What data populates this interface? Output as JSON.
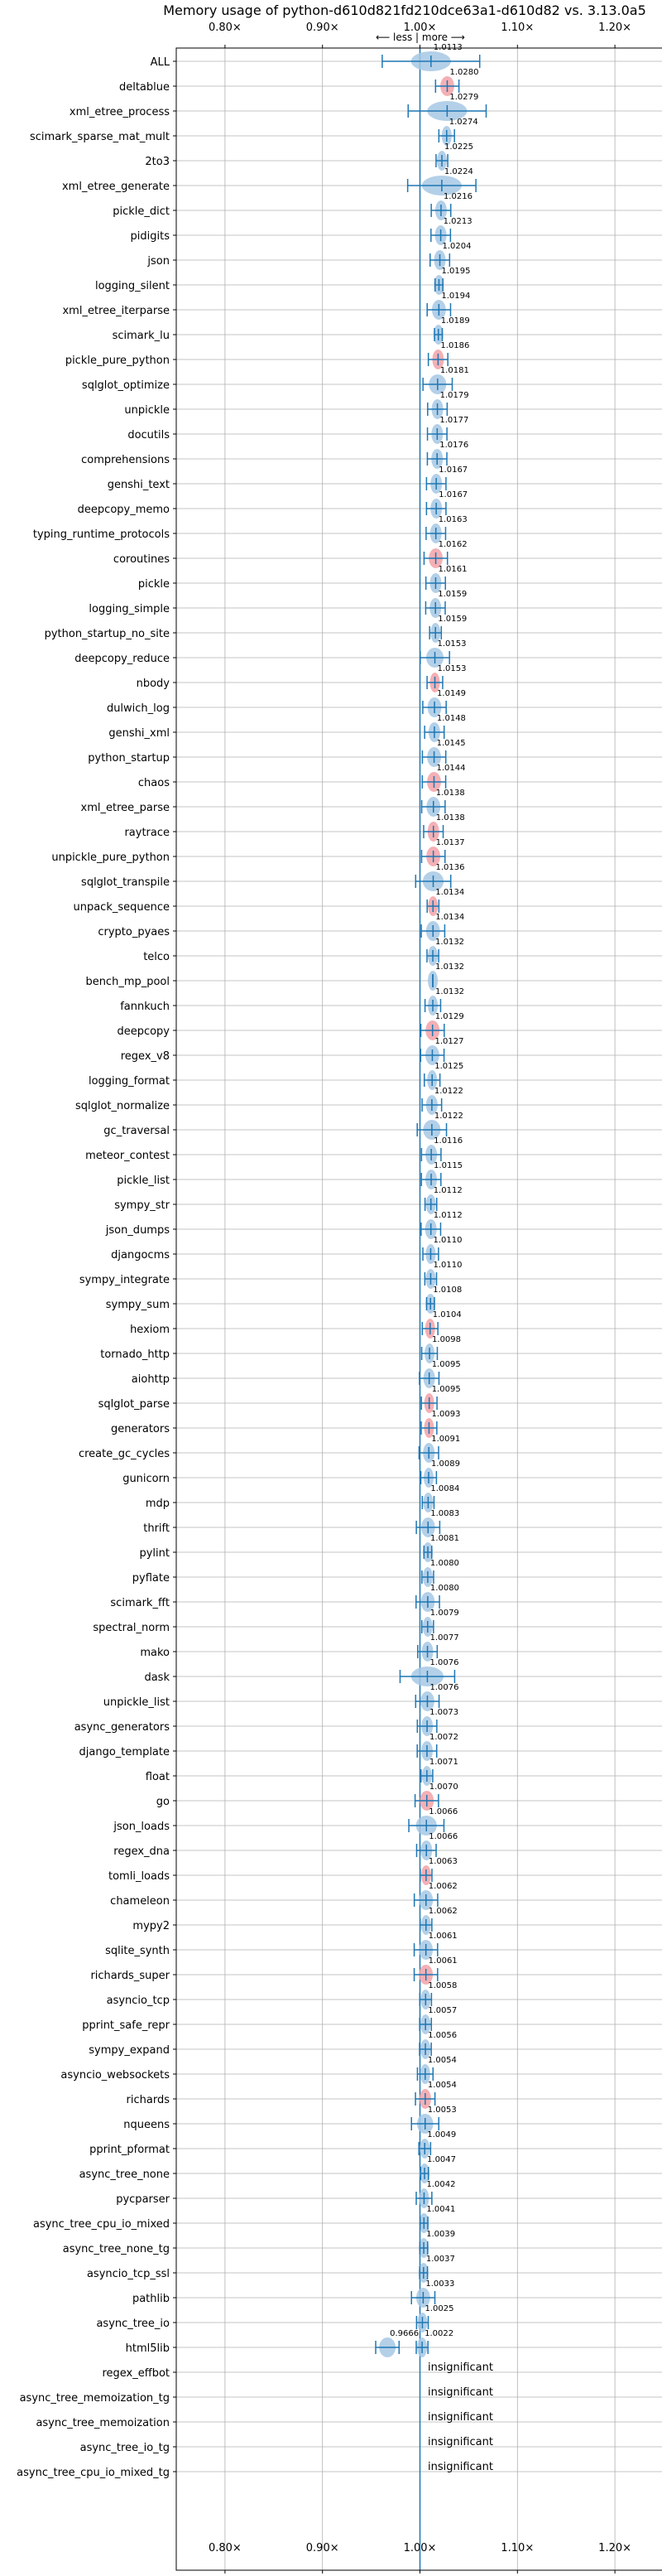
{
  "chart_data": {
    "type": "scatter",
    "title": "Memory usage of python-d610d821fd210dce63a1-d610d82 vs. 3.13.0a5",
    "direction_label": "⟵ less | more ⟶",
    "xlim": [
      0.75,
      1.25
    ],
    "xticks": [
      0.8,
      0.9,
      1.0,
      1.1,
      1.2
    ],
    "xtick_labels": [
      "0.80×",
      "0.90×",
      "1.00×",
      "1.10×",
      "1.20×"
    ],
    "insignificant_label": "insignificant",
    "colors": {
      "line": "#1f77b4",
      "violin_blue": "#a6c8e4",
      "violin_red": "#f2a2a8",
      "grid": "#b0b0b0"
    },
    "benchmarks": [
      {
        "name": "ALL",
        "value": 1.0113,
        "err": 0.05,
        "color": "blue"
      },
      {
        "name": "deltablue",
        "value": 1.028,
        "err": 0.012,
        "color": "red"
      },
      {
        "name": "xml_etree_process",
        "value": 1.0279,
        "err": 0.04,
        "color": "blue"
      },
      {
        "name": "scimark_sparse_mat_mult",
        "value": 1.0274,
        "err": 0.008,
        "color": "blue"
      },
      {
        "name": "2to3",
        "value": 1.0225,
        "err": 0.006,
        "color": "blue"
      },
      {
        "name": "xml_etree_generate",
        "value": 1.0224,
        "err": 0.035,
        "color": "blue"
      },
      {
        "name": "pickle_dict",
        "value": 1.0216,
        "err": 0.01,
        "color": "blue"
      },
      {
        "name": "pidigits",
        "value": 1.0213,
        "err": 0.01,
        "color": "blue"
      },
      {
        "name": "json",
        "value": 1.0204,
        "err": 0.01,
        "color": "blue"
      },
      {
        "name": "logging_silent",
        "value": 1.0195,
        "err": 0.004,
        "color": "blue"
      },
      {
        "name": "xml_etree_iterparse",
        "value": 1.0194,
        "err": 0.012,
        "color": "blue"
      },
      {
        "name": "scimark_lu",
        "value": 1.0189,
        "err": 0.004,
        "color": "blue"
      },
      {
        "name": "pickle_pure_python",
        "value": 1.0186,
        "err": 0.01,
        "color": "red"
      },
      {
        "name": "sqlglot_optimize",
        "value": 1.0181,
        "err": 0.015,
        "color": "blue"
      },
      {
        "name": "unpickle",
        "value": 1.0179,
        "err": 0.01,
        "color": "blue"
      },
      {
        "name": "docutils",
        "value": 1.0177,
        "err": 0.01,
        "color": "blue"
      },
      {
        "name": "comprehensions",
        "value": 1.0176,
        "err": 0.01,
        "color": "blue"
      },
      {
        "name": "genshi_text",
        "value": 1.0167,
        "err": 0.01,
        "color": "blue"
      },
      {
        "name": "deepcopy_memo",
        "value": 1.0167,
        "err": 0.01,
        "color": "blue"
      },
      {
        "name": "typing_runtime_protocols",
        "value": 1.0163,
        "err": 0.01,
        "color": "blue"
      },
      {
        "name": "coroutines",
        "value": 1.0162,
        "err": 0.012,
        "color": "red"
      },
      {
        "name": "pickle",
        "value": 1.0161,
        "err": 0.01,
        "color": "blue"
      },
      {
        "name": "logging_simple",
        "value": 1.0159,
        "err": 0.01,
        "color": "blue"
      },
      {
        "name": "python_startup_no_site",
        "value": 1.0159,
        "err": 0.006,
        "color": "blue"
      },
      {
        "name": "deepcopy_reduce",
        "value": 1.0153,
        "err": 0.015,
        "color": "blue"
      },
      {
        "name": "nbody",
        "value": 1.0153,
        "err": 0.008,
        "color": "red"
      },
      {
        "name": "dulwich_log",
        "value": 1.0149,
        "err": 0.012,
        "color": "blue"
      },
      {
        "name": "genshi_xml",
        "value": 1.0148,
        "err": 0.01,
        "color": "blue"
      },
      {
        "name": "python_startup",
        "value": 1.0145,
        "err": 0.012,
        "color": "blue"
      },
      {
        "name": "chaos",
        "value": 1.0144,
        "err": 0.012,
        "color": "red"
      },
      {
        "name": "xml_etree_parse",
        "value": 1.0138,
        "err": 0.012,
        "color": "blue"
      },
      {
        "name": "raytrace",
        "value": 1.0138,
        "err": 0.01,
        "color": "red"
      },
      {
        "name": "unpickle_pure_python",
        "value": 1.0137,
        "err": 0.012,
        "color": "red"
      },
      {
        "name": "sqlglot_transpile",
        "value": 1.0136,
        "err": 0.018,
        "color": "blue"
      },
      {
        "name": "unpack_sequence",
        "value": 1.0134,
        "err": 0.006,
        "color": "red"
      },
      {
        "name": "crypto_pyaes",
        "value": 1.0134,
        "err": 0.012,
        "color": "blue"
      },
      {
        "name": "telco",
        "value": 1.0132,
        "err": 0.006,
        "color": "blue"
      },
      {
        "name": "bench_mp_pool",
        "value": 1.0132,
        "err": 0.0,
        "color": "blue"
      },
      {
        "name": "fannkuch",
        "value": 1.0132,
        "err": 0.008,
        "color": "blue"
      },
      {
        "name": "deepcopy",
        "value": 1.0129,
        "err": 0.012,
        "color": "red"
      },
      {
        "name": "regex_v8",
        "value": 1.0127,
        "err": 0.012,
        "color": "blue"
      },
      {
        "name": "logging_format",
        "value": 1.0125,
        "err": 0.008,
        "color": "blue"
      },
      {
        "name": "sqlglot_normalize",
        "value": 1.0122,
        "err": 0.01,
        "color": "blue"
      },
      {
        "name": "gc_traversal",
        "value": 1.0122,
        "err": 0.015,
        "color": "blue"
      },
      {
        "name": "meteor_contest",
        "value": 1.0116,
        "err": 0.01,
        "color": "blue"
      },
      {
        "name": "pickle_list",
        "value": 1.0115,
        "err": 0.01,
        "color": "blue"
      },
      {
        "name": "sympy_str",
        "value": 1.0112,
        "err": 0.006,
        "color": "blue"
      },
      {
        "name": "json_dumps",
        "value": 1.0112,
        "err": 0.01,
        "color": "blue"
      },
      {
        "name": "djangocms",
        "value": 1.011,
        "err": 0.008,
        "color": "blue"
      },
      {
        "name": "sympy_integrate",
        "value": 1.011,
        "err": 0.006,
        "color": "blue"
      },
      {
        "name": "sympy_sum",
        "value": 1.0108,
        "err": 0.004,
        "color": "blue"
      },
      {
        "name": "hexiom",
        "value": 1.0104,
        "err": 0.008,
        "color": "red"
      },
      {
        "name": "tornado_http",
        "value": 1.0098,
        "err": 0.008,
        "color": "blue"
      },
      {
        "name": "aiohttp",
        "value": 1.0095,
        "err": 0.01,
        "color": "blue"
      },
      {
        "name": "sqlglot_parse",
        "value": 1.0095,
        "err": 0.008,
        "color": "red"
      },
      {
        "name": "generators",
        "value": 1.0093,
        "err": 0.008,
        "color": "red"
      },
      {
        "name": "create_gc_cycles",
        "value": 1.0091,
        "err": 0.01,
        "color": "blue"
      },
      {
        "name": "gunicorn",
        "value": 1.0089,
        "err": 0.008,
        "color": "blue"
      },
      {
        "name": "mdp",
        "value": 1.0084,
        "err": 0.006,
        "color": "blue"
      },
      {
        "name": "thrift",
        "value": 1.0083,
        "err": 0.012,
        "color": "blue"
      },
      {
        "name": "pylint",
        "value": 1.0081,
        "err": 0.004,
        "color": "blue"
      },
      {
        "name": "pyflate",
        "value": 1.008,
        "err": 0.006,
        "color": "blue"
      },
      {
        "name": "scimark_fft",
        "value": 1.008,
        "err": 0.012,
        "color": "blue"
      },
      {
        "name": "spectral_norm",
        "value": 1.0079,
        "err": 0.006,
        "color": "blue"
      },
      {
        "name": "mako",
        "value": 1.0077,
        "err": 0.01,
        "color": "blue"
      },
      {
        "name": "dask",
        "value": 1.0076,
        "err": 0.028,
        "color": "blue"
      },
      {
        "name": "unpickle_list",
        "value": 1.0076,
        "err": 0.012,
        "color": "blue"
      },
      {
        "name": "async_generators",
        "value": 1.0073,
        "err": 0.01,
        "color": "blue"
      },
      {
        "name": "django_template",
        "value": 1.0072,
        "err": 0.01,
        "color": "blue"
      },
      {
        "name": "float",
        "value": 1.0071,
        "err": 0.006,
        "color": "blue"
      },
      {
        "name": "go",
        "value": 1.007,
        "err": 0.012,
        "color": "red"
      },
      {
        "name": "json_loads",
        "value": 1.0066,
        "err": 0.018,
        "color": "blue"
      },
      {
        "name": "regex_dna",
        "value": 1.0066,
        "err": 0.01,
        "color": "blue"
      },
      {
        "name": "tomli_loads",
        "value": 1.0063,
        "err": 0.006,
        "color": "red"
      },
      {
        "name": "chameleon",
        "value": 1.0062,
        "err": 0.012,
        "color": "blue"
      },
      {
        "name": "mypy2",
        "value": 1.0062,
        "err": 0.006,
        "color": "blue"
      },
      {
        "name": "sqlite_synth",
        "value": 1.0061,
        "err": 0.012,
        "color": "blue"
      },
      {
        "name": "richards_super",
        "value": 1.0061,
        "err": 0.012,
        "color": "red"
      },
      {
        "name": "asyncio_tcp",
        "value": 1.0058,
        "err": 0.006,
        "color": "blue"
      },
      {
        "name": "pprint_safe_repr",
        "value": 1.0057,
        "err": 0.006,
        "color": "blue"
      },
      {
        "name": "sympy_expand",
        "value": 1.0056,
        "err": 0.006,
        "color": "blue"
      },
      {
        "name": "asyncio_websockets",
        "value": 1.0054,
        "err": 0.008,
        "color": "blue"
      },
      {
        "name": "richards",
        "value": 1.0054,
        "err": 0.01,
        "color": "red"
      },
      {
        "name": "nqueens",
        "value": 1.0053,
        "err": 0.014,
        "color": "blue"
      },
      {
        "name": "pprint_pformat",
        "value": 1.0049,
        "err": 0.006,
        "color": "blue"
      },
      {
        "name": "async_tree_none",
        "value": 1.0047,
        "err": 0.004,
        "color": "blue"
      },
      {
        "name": "pycparser",
        "value": 1.0042,
        "err": 0.008,
        "color": "blue"
      },
      {
        "name": "async_tree_cpu_io_mixed",
        "value": 1.0041,
        "err": 0.004,
        "color": "blue"
      },
      {
        "name": "async_tree_none_tg",
        "value": 1.0039,
        "err": 0.004,
        "color": "blue"
      },
      {
        "name": "asyncio_tcp_ssl",
        "value": 1.0037,
        "err": 0.004,
        "color": "blue"
      },
      {
        "name": "pathlib",
        "value": 1.0033,
        "err": 0.012,
        "color": "blue"
      },
      {
        "name": "async_tree_io",
        "value": 1.0025,
        "err": 0.006,
        "color": "blue"
      },
      {
        "name": "html5lib",
        "value": 1.0022,
        "err": 0.006,
        "color": "blue"
      }
    ],
    "html5lib_extra": {
      "value": 0.9666,
      "err": 0.012
    },
    "insignificant": [
      "regex_effbot",
      "async_tree_memoization_tg",
      "async_tree_memoization",
      "async_tree_io_tg",
      "async_tree_cpu_io_mixed_tg"
    ]
  }
}
